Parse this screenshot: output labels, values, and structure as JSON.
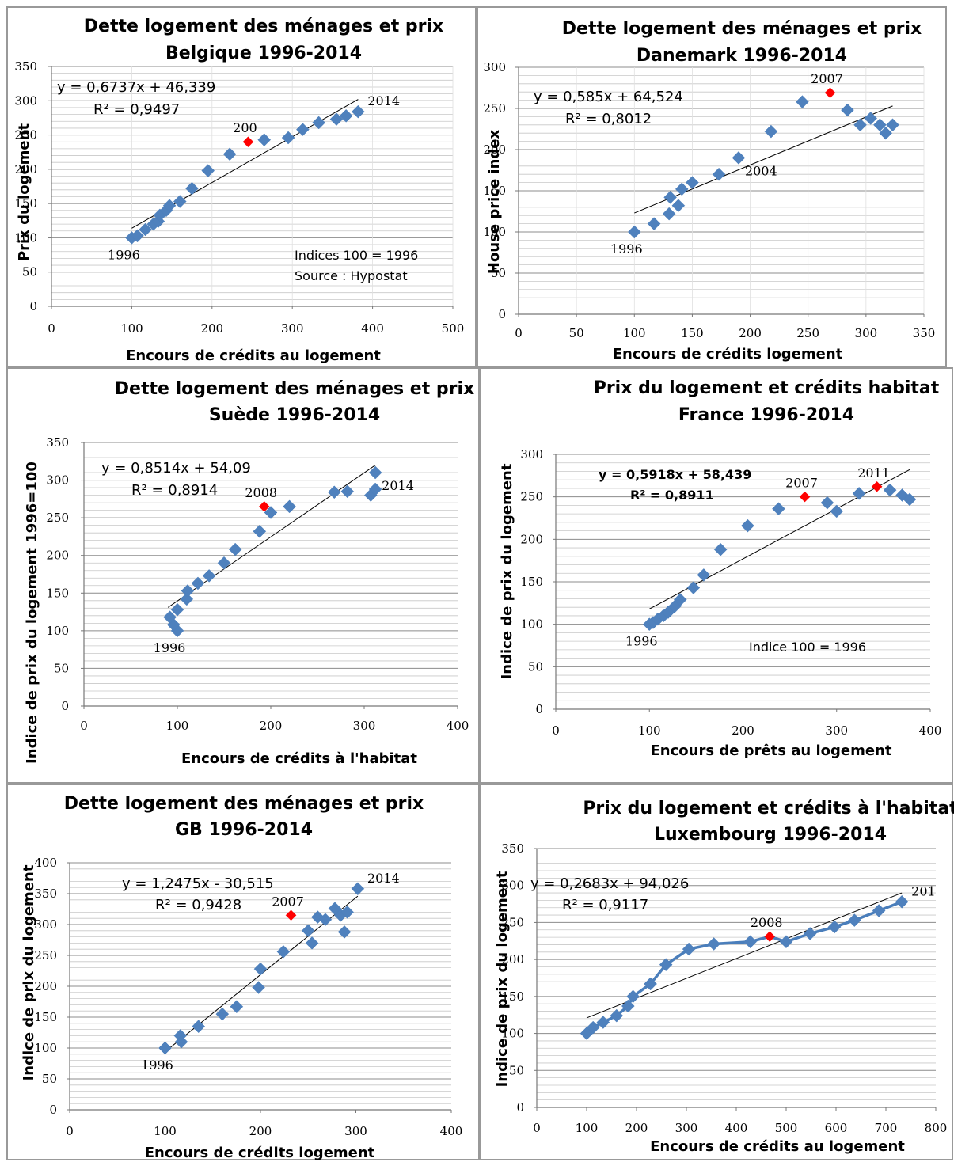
{
  "chart_data": [
    {
      "type": "scatter",
      "title": "Dette logement des ménages et prix",
      "subtitle": "Belgique 1996-2014",
      "xlabel": "Encours de crédits au logement",
      "ylabel": "Prix du logement",
      "xlim": [
        0,
        500
      ],
      "ylim": [
        0,
        350
      ],
      "xticks": [
        "0",
        "100",
        "200",
        "300",
        "400",
        "500"
      ],
      "yticks": [
        "0",
        "50",
        "100",
        "150",
        "200",
        "250",
        "300",
        "350"
      ],
      "equation": "y = 0,6737x + 46,339",
      "r2": "R² = 0,9497",
      "notes": [
        "Indices 100 = 1996",
        "Source : Hypostat"
      ],
      "points": [
        [
          100,
          100
        ],
        [
          107,
          103
        ],
        [
          117,
          112
        ],
        [
          127,
          120
        ],
        [
          133,
          124
        ],
        [
          135,
          133
        ],
        [
          143,
          140
        ],
        [
          147,
          147
        ],
        [
          160,
          153
        ],
        [
          175,
          172
        ],
        [
          195,
          198
        ],
        [
          222,
          222
        ],
        [
          245,
          240
        ],
        [
          265,
          243
        ],
        [
          295,
          246
        ],
        [
          313,
          258
        ],
        [
          333,
          268
        ],
        [
          355,
          273
        ],
        [
          367,
          278
        ],
        [
          382,
          284
        ]
      ],
      "highlight": [
        [
          245,
          240
        ]
      ],
      "trendline": [
        [
          100,
          114
        ],
        [
          382,
          302
        ]
      ],
      "labels": [
        {
          "text": "1996",
          "x": 100,
          "y": 100
        },
        {
          "text": "200",
          "x": 245,
          "y": 240
        },
        {
          "text": "2014",
          "x": 382,
          "y": 284
        }
      ]
    },
    {
      "type": "scatter",
      "title": "Dette logement des ménages et prix",
      "subtitle": "Danemark 1996-2014",
      "xlabel": "Encours de crédits logement",
      "ylabel": "House price index",
      "xlim": [
        0,
        350
      ],
      "ylim": [
        0,
        300
      ],
      "xticks": [
        "0",
        "50",
        "100",
        "150",
        "200",
        "250",
        "300",
        "350"
      ],
      "yticks": [
        "0",
        "50",
        "100",
        "150",
        "200",
        "250",
        "300"
      ],
      "equation": "y = 0,585x + 64,524",
      "r2": "R² = 0,8012",
      "notes": [],
      "points": [
        [
          100,
          100
        ],
        [
          117,
          110
        ],
        [
          130,
          122
        ],
        [
          131,
          142
        ],
        [
          138,
          132
        ],
        [
          141,
          152
        ],
        [
          150,
          160
        ],
        [
          173,
          170
        ],
        [
          190,
          190
        ],
        [
          218,
          222
        ],
        [
          245,
          258
        ],
        [
          269,
          269
        ],
        [
          284,
          248
        ],
        [
          295,
          230
        ],
        [
          304,
          238
        ],
        [
          312,
          230
        ],
        [
          317,
          220
        ],
        [
          323,
          230
        ]
      ],
      "highlight": [
        [
          269,
          269
        ]
      ],
      "trendline": [
        [
          100,
          123
        ],
        [
          323,
          253
        ]
      ],
      "labels": [
        {
          "text": "1996",
          "x": 100,
          "y": 100
        },
        {
          "text": "2004",
          "x": 190,
          "y": 190
        },
        {
          "text": "2007",
          "x": 269,
          "y": 269
        }
      ]
    },
    {
      "type": "scatter",
      "title": "Dette logement des ménages et prix",
      "subtitle": "Suède 1996-2014",
      "xlabel": "Encours de crédits à l'habitat",
      "ylabel": "Indice de prix du logement 1996=100",
      "xlim": [
        0,
        400
      ],
      "ylim": [
        0,
        350
      ],
      "xticks": [
        "0",
        "100",
        "200",
        "300",
        "400"
      ],
      "yticks": [
        "0",
        "50",
        "100",
        "150",
        "200",
        "250",
        "300",
        "350"
      ],
      "equation": "y = 0,8514x + 54,09",
      "r2": "R² = 0,8914",
      "notes": [],
      "points": [
        [
          100,
          100
        ],
        [
          96,
          108
        ],
        [
          92,
          118
        ],
        [
          100,
          128
        ],
        [
          110,
          142
        ],
        [
          111,
          153
        ],
        [
          122,
          163
        ],
        [
          134,
          173
        ],
        [
          150,
          190
        ],
        [
          162,
          208
        ],
        [
          188,
          232
        ],
        [
          193,
          265
        ],
        [
          200,
          257
        ],
        [
          220,
          265
        ],
        [
          268,
          284
        ],
        [
          282,
          285
        ],
        [
          307,
          280
        ],
        [
          312,
          310
        ],
        [
          312,
          288
        ]
      ],
      "highlight": [
        [
          193,
          265
        ]
      ],
      "trendline": [
        [
          90,
          131
        ],
        [
          312,
          320
        ]
      ],
      "labels": [
        {
          "text": "1996",
          "x": 100,
          "y": 100
        },
        {
          "text": "2008",
          "x": 193,
          "y": 265
        },
        {
          "text": "2014",
          "x": 312,
          "y": 310
        }
      ]
    },
    {
      "type": "scatter",
      "title": "Prix du logement et crédits habitat",
      "subtitle": "France 1996-2014",
      "xlabel": "Encours de prêts au logement",
      "ylabel": "Indice de prix du logement",
      "xlim": [
        0,
        400
      ],
      "ylim": [
        0,
        300
      ],
      "xticks": [
        "0",
        "100",
        "200",
        "300",
        "400"
      ],
      "yticks": [
        "0",
        "50",
        "100",
        "150",
        "200",
        "250",
        "300"
      ],
      "equation": "y = 0,5918x + 58,439",
      "r2": "R² = 0,8911",
      "notes": [
        "Indice 100 = 1996"
      ],
      "points": [
        [
          100,
          100
        ],
        [
          104,
          102
        ],
        [
          109,
          106
        ],
        [
          115,
          110
        ],
        [
          120,
          114
        ],
        [
          127,
          121
        ],
        [
          133,
          129
        ],
        [
          147,
          143
        ],
        [
          158,
          158
        ],
        [
          176,
          188
        ],
        [
          205,
          216
        ],
        [
          238,
          236
        ],
        [
          266,
          250
        ],
        [
          290,
          243
        ],
        [
          300,
          233
        ],
        [
          324,
          254
        ],
        [
          343,
          262
        ],
        [
          357,
          258
        ],
        [
          370,
          252
        ],
        [
          378,
          247
        ]
      ],
      "highlight": [
        [
          266,
          250
        ],
        [
          343,
          262
        ]
      ],
      "trendline": [
        [
          100,
          118
        ],
        [
          378,
          282
        ]
      ],
      "labels": [
        {
          "text": "1996",
          "x": 100,
          "y": 100
        },
        {
          "text": "2007",
          "x": 266,
          "y": 250
        },
        {
          "text": "2011",
          "x": 343,
          "y": 262
        }
      ]
    },
    {
      "type": "scatter",
      "title": "Dette logement des ménages et prix",
      "subtitle": "GB 1996-2014",
      "xlabel": "Encours de crédits logement",
      "ylabel": "Indice de prix du logement",
      "xlim": [
        0,
        400
      ],
      "ylim": [
        0,
        400
      ],
      "xticks": [
        "0",
        "100",
        "200",
        "300",
        "400"
      ],
      "yticks": [
        "0",
        "50",
        "100",
        "150",
        "200",
        "250",
        "300",
        "350",
        "400"
      ],
      "equation": "y = 1,2475x - 30,515",
      "r2": "R² = 0,9428",
      "notes": [],
      "points": [
        [
          100,
          100
        ],
        [
          116,
          120
        ],
        [
          117,
          110
        ],
        [
          135,
          135
        ],
        [
          160,
          155
        ],
        [
          175,
          167
        ],
        [
          198,
          198
        ],
        [
          200,
          228
        ],
        [
          224,
          256
        ],
        [
          232,
          315
        ],
        [
          250,
          290
        ],
        [
          254,
          270
        ],
        [
          260,
          312
        ],
        [
          268,
          308
        ],
        [
          278,
          326
        ],
        [
          284,
          315
        ],
        [
          288,
          288
        ],
        [
          291,
          320
        ],
        [
          302,
          358
        ]
      ],
      "highlight": [
        [
          232,
          315
        ]
      ],
      "trendline": [
        [
          100,
          94
        ],
        [
          302,
          346
        ]
      ],
      "labels": [
        {
          "text": "1996",
          "x": 100,
          "y": 100
        },
        {
          "text": "2007",
          "x": 232,
          "y": 315
        },
        {
          "text": "2014",
          "x": 302,
          "y": 358
        }
      ]
    },
    {
      "type": "line",
      "title": "Prix du logement et crédits à l'habitat",
      "subtitle": "Luxembourg 1996-2014",
      "xlabel": "Encours de crédits au logement",
      "ylabel": "Indice de prix du logement",
      "xlim": [
        0,
        800
      ],
      "ylim": [
        0,
        350
      ],
      "xticks": [
        "0",
        "100",
        "200",
        "300",
        "400",
        "500",
        "600",
        "700",
        "800"
      ],
      "yticks": [
        "0",
        "50",
        "100",
        "150",
        "200",
        "250",
        "300",
        "350"
      ],
      "equation": "y = 0,2683x + 94,026",
      "r2": "R² = 0,9117",
      "notes": [],
      "points": [
        [
          100,
          100
        ],
        [
          113,
          108
        ],
        [
          133,
          115
        ],
        [
          160,
          124
        ],
        [
          183,
          137
        ],
        [
          193,
          150
        ],
        [
          228,
          167
        ],
        [
          259,
          193
        ],
        [
          305,
          214
        ],
        [
          355,
          221
        ],
        [
          428,
          224
        ],
        [
          467,
          231
        ],
        [
          500,
          224
        ],
        [
          548,
          235
        ],
        [
          597,
          244
        ],
        [
          637,
          253
        ],
        [
          686,
          266
        ],
        [
          732,
          278
        ]
      ],
      "highlight": [
        [
          467,
          231
        ]
      ],
      "trendline": [
        [
          100,
          121
        ],
        [
          732,
          290
        ]
      ],
      "labels": [
        {
          "text": "2008",
          "x": 467,
          "y": 231
        },
        {
          "text": "201",
          "x": 732,
          "y": 278
        }
      ]
    }
  ]
}
